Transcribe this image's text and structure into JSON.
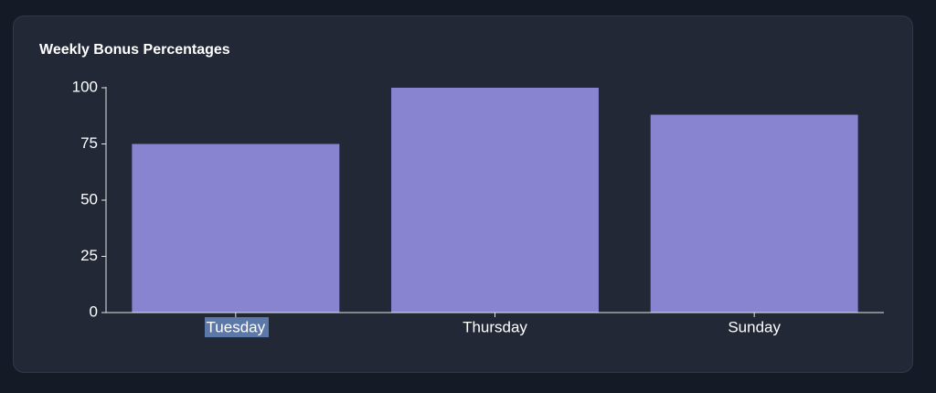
{
  "chart_data": {
    "type": "bar",
    "title": "Weekly Bonus Percentages",
    "categories": [
      "Tuesday",
      "Thursday",
      "Sunday"
    ],
    "values": [
      75,
      100,
      88
    ],
    "color": "#8884d0",
    "ylim": [
      0,
      100
    ],
    "yticks": [
      0,
      25,
      50,
      75,
      100
    ],
    "grid": false
  }
}
